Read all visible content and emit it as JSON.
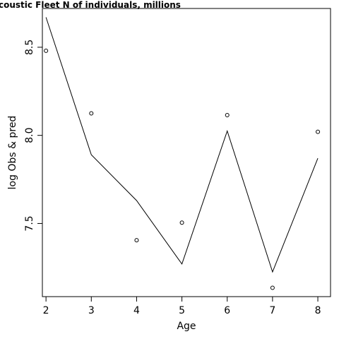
{
  "chart_data": {
    "type": "line",
    "title": "coustic Fleet   N of individuals, millions",
    "xlabel": "Age",
    "ylabel": "log Obs & pred",
    "x": [
      2,
      3,
      4,
      5,
      6,
      7,
      8
    ],
    "xlim": [
      1.92,
      8.28
    ],
    "ylim": [
      7.085,
      8.72
    ],
    "x_ticks": [
      2,
      3,
      4,
      5,
      6,
      7,
      8
    ],
    "y_ticks": [
      7.5,
      8.0,
      8.5
    ],
    "y_tick_labels": [
      "7.5",
      "8.0",
      "8.5"
    ],
    "series": [
      {
        "style": "points",
        "values": [
          8.48,
          8.125,
          7.405,
          7.505,
          8.115,
          7.135,
          8.02
        ]
      },
      {
        "style": "line",
        "values": [
          8.67,
          7.89,
          7.63,
          7.27,
          8.025,
          7.225,
          7.87
        ]
      }
    ],
    "grid": false,
    "colors": {
      "line": "#000000",
      "points": "#000000",
      "frame": "#000000"
    }
  }
}
